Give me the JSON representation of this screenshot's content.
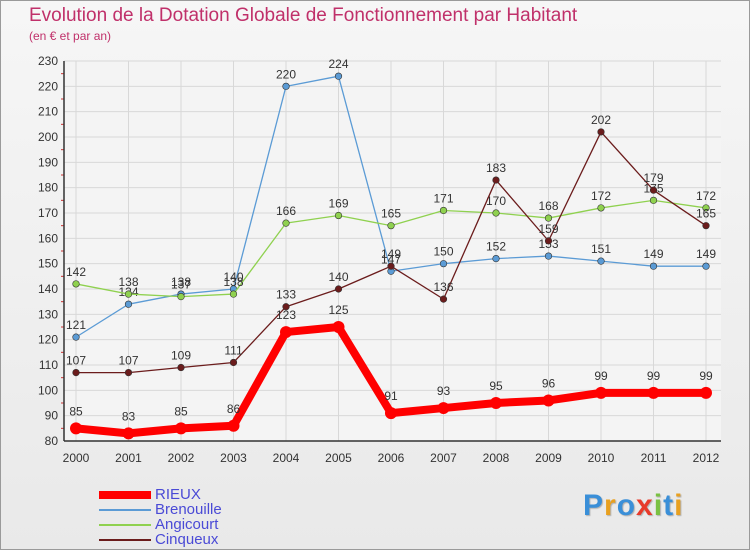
{
  "chart_data": {
    "type": "line",
    "title": "Evolution de la Dotation Globale de Fonctionnement par Habitant",
    "subtitle": "(en € et par an)",
    "x": [
      "2000",
      "2001",
      "2002",
      "2003",
      "2004",
      "2005",
      "2006",
      "2007",
      "2008",
      "2009",
      "2010",
      "2011",
      "2012"
    ],
    "ylim": [
      80,
      230
    ],
    "yticks": [
      80,
      90,
      100,
      110,
      120,
      130,
      140,
      150,
      160,
      170,
      180,
      190,
      200,
      210,
      220,
      230
    ],
    "grid": true,
    "series": [
      {
        "name": "RIEUX",
        "color": "#ff0000",
        "values": [
          85,
          83,
          85,
          86,
          123,
          125,
          91,
          93,
          95,
          96,
          99,
          99,
          99
        ]
      },
      {
        "name": "Brenouille",
        "color": "#5b9bd5",
        "values": [
          121,
          134,
          138,
          140,
          220,
          224,
          147,
          150,
          152,
          153,
          151,
          149,
          149
        ]
      },
      {
        "name": "Angicourt",
        "color": "#8fd14f",
        "values": [
          142,
          138,
          137,
          138,
          166,
          169,
          165,
          171,
          170,
          168,
          172,
          175,
          172
        ]
      },
      {
        "name": "Cinqueux",
        "color": "#6b1c1c",
        "values": [
          107,
          107,
          109,
          111,
          133,
          140,
          149,
          136,
          183,
          159,
          202,
          179,
          165
        ]
      }
    ]
  },
  "logo": {
    "text": "Proxiti",
    "letters": [
      "P",
      "r",
      "o",
      "x",
      "i",
      "t",
      "i"
    ],
    "colors": [
      "#3a8fd8",
      "#e8a020",
      "#3a8fd8",
      "#e83a2a",
      "#7ac142",
      "#3a8fd8",
      "#e8a020"
    ]
  }
}
